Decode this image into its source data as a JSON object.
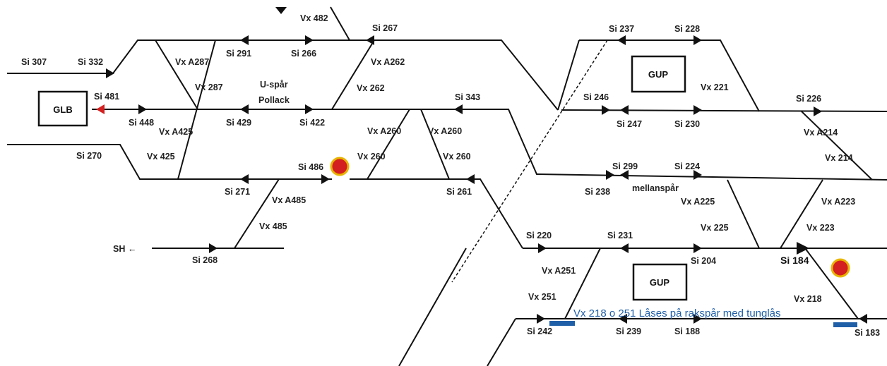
{
  "boxes": [
    {
      "id": "glb",
      "text": "GLB"
    },
    {
      "id": "gup-top",
      "text": "GUP"
    },
    {
      "id": "gup-bottom",
      "text": "GUP"
    }
  ],
  "signals": [
    {
      "id": "si307",
      "text": "Si 307"
    },
    {
      "id": "si332",
      "text": "Si 332"
    },
    {
      "id": "si481",
      "text": "Si 481"
    },
    {
      "id": "si448",
      "text": "Si 448"
    },
    {
      "id": "si270",
      "text": "Si 270"
    },
    {
      "id": "si291",
      "text": "Si 291"
    },
    {
      "id": "si266",
      "text": "Si 266"
    },
    {
      "id": "si267",
      "text": "Si 267"
    },
    {
      "id": "si429",
      "text": "Si 429"
    },
    {
      "id": "si422",
      "text": "Si 422"
    },
    {
      "id": "si343",
      "text": "Si 343"
    },
    {
      "id": "si486",
      "text": "Si 486"
    },
    {
      "id": "si271",
      "text": "Si 271"
    },
    {
      "id": "si261",
      "text": "Si 261"
    },
    {
      "id": "si268",
      "text": "Si 268"
    },
    {
      "id": "si237",
      "text": "Si 237"
    },
    {
      "id": "si228",
      "text": "Si 228"
    },
    {
      "id": "si246",
      "text": "Si 246"
    },
    {
      "id": "si247",
      "text": "Si 247"
    },
    {
      "id": "si230",
      "text": "Si 230"
    },
    {
      "id": "si226",
      "text": "Si 226"
    },
    {
      "id": "si299",
      "text": "Si 299"
    },
    {
      "id": "si224",
      "text": "Si 224"
    },
    {
      "id": "si238",
      "text": "Si 238"
    },
    {
      "id": "si220",
      "text": "Si 220"
    },
    {
      "id": "si231",
      "text": "Si 231"
    },
    {
      "id": "si204",
      "text": "Si 204"
    },
    {
      "id": "si184",
      "text": "Si 184"
    },
    {
      "id": "si242",
      "text": "Si 242"
    },
    {
      "id": "si239",
      "text": "Si 239"
    },
    {
      "id": "si188",
      "text": "Si 188"
    },
    {
      "id": "si183",
      "text": "Si 183"
    }
  ],
  "switches": [
    {
      "id": "vx482",
      "text": "Vx 482"
    },
    {
      "id": "vxa287",
      "text": "Vx A287"
    },
    {
      "id": "vx287",
      "text": "Vx 287"
    },
    {
      "id": "vxa262",
      "text": "Vx A262"
    },
    {
      "id": "vx262",
      "text": "Vx 262"
    },
    {
      "id": "vxa425",
      "text": "Vx A425"
    },
    {
      "id": "vx425",
      "text": "Vx 425"
    },
    {
      "id": "vxa260a",
      "text": "Vx A260"
    },
    {
      "id": "vxa260b",
      "text": "Vx A260"
    },
    {
      "id": "vx260a",
      "text": "Vx 260"
    },
    {
      "id": "vx260b",
      "text": "Vx 260"
    },
    {
      "id": "vxa485",
      "text": "Vx A485"
    },
    {
      "id": "vx485",
      "text": "Vx 485"
    },
    {
      "id": "vx221",
      "text": "Vx 221"
    },
    {
      "id": "vxa214",
      "text": "Vx A214"
    },
    {
      "id": "vx214",
      "text": "Vx 214"
    },
    {
      "id": "vxa225",
      "text": "Vx A225"
    },
    {
      "id": "vx225",
      "text": "Vx 225"
    },
    {
      "id": "vxa223",
      "text": "Vx A223"
    },
    {
      "id": "vx223",
      "text": "Vx 223"
    },
    {
      "id": "vxa251",
      "text": "Vx A251"
    },
    {
      "id": "vx251",
      "text": "Vx 251"
    },
    {
      "id": "vx218",
      "text": "Vx 218"
    }
  ],
  "track_labels": {
    "uspar": "U-spår",
    "pollack": "Pollack",
    "mellanspar": "mellanspår",
    "sh": "SH ←"
  },
  "note": "Vx 218 o 251 Låses på rakspår med tunglås",
  "colors": {
    "track": "#111111",
    "stop_signal": "#d42020",
    "stop_ring": "#e8b400",
    "note": "#1f5fa8",
    "lock_bar": "#1f5fa8"
  }
}
